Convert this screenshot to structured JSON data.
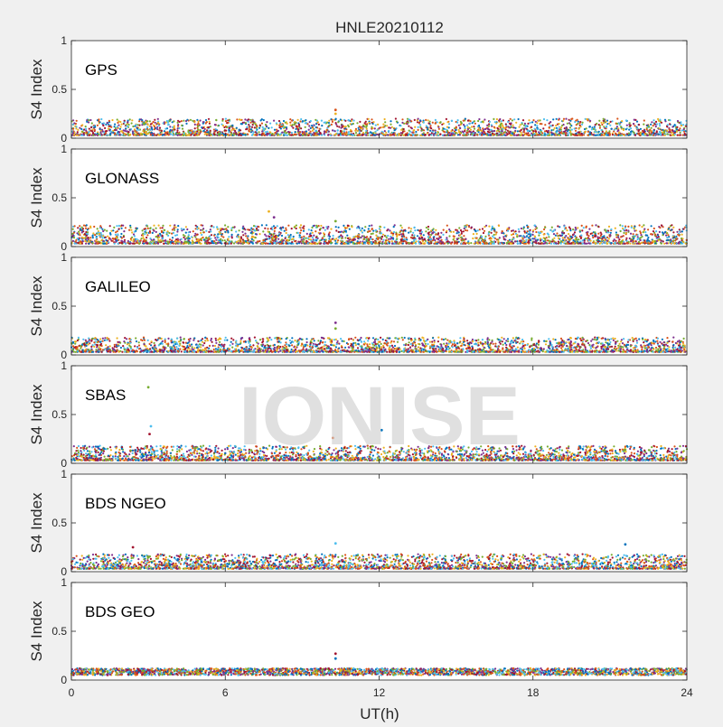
{
  "title": "HNLE20210112",
  "watermark": "IONISE",
  "chart_data": {
    "type": "scatter",
    "title": "HNLE20210112",
    "xlabel": "UT(h)",
    "ylabel": "S4 Index",
    "xlim": [
      0,
      24
    ],
    "ylim": [
      0,
      1
    ],
    "x_ticks": [
      "0",
      "6",
      "12",
      "18",
      "24"
    ],
    "y_ticks": [
      "0",
      "0.5",
      "1"
    ],
    "grid": false,
    "panels": [
      {
        "label": "GPS",
        "typical_range": [
          0.03,
          0.2
        ],
        "spikes": [
          {
            "x": 10.3,
            "y": 0.29
          },
          {
            "x": 10.3,
            "y": 0.25
          }
        ]
      },
      {
        "label": "GLONASS",
        "typical_range": [
          0.03,
          0.22
        ],
        "spikes": [
          {
            "x": 7.7,
            "y": 0.36
          },
          {
            "x": 7.9,
            "y": 0.3
          },
          {
            "x": 10.3,
            "y": 0.26
          }
        ]
      },
      {
        "label": "GALILEO",
        "typical_range": [
          0.03,
          0.18
        ],
        "spikes": [
          {
            "x": 10.3,
            "y": 0.33
          },
          {
            "x": 10.3,
            "y": 0.27
          }
        ]
      },
      {
        "label": "SBAS",
        "typical_range": [
          0.03,
          0.18
        ],
        "spikes": [
          {
            "x": 3.0,
            "y": 0.78
          },
          {
            "x": 3.1,
            "y": 0.38
          },
          {
            "x": 3.05,
            "y": 0.3
          },
          {
            "x": 12.1,
            "y": 0.34
          },
          {
            "x": 10.2,
            "y": 0.26
          }
        ]
      },
      {
        "label": "BDS NGEO",
        "typical_range": [
          0.03,
          0.18
        ],
        "spikes": [
          {
            "x": 10.3,
            "y": 0.29
          },
          {
            "x": 2.4,
            "y": 0.25
          },
          {
            "x": 21.6,
            "y": 0.28
          }
        ]
      },
      {
        "label": "BDS GEO",
        "typical_range": [
          0.05,
          0.12
        ],
        "spikes": [
          {
            "x": 10.3,
            "y": 0.27
          },
          {
            "x": 10.3,
            "y": 0.22
          }
        ]
      }
    ],
    "series_colors": [
      "#0072BD",
      "#D95319",
      "#EDB120",
      "#7E2F8E",
      "#77AC30",
      "#4DBEEE",
      "#A2142F"
    ]
  }
}
